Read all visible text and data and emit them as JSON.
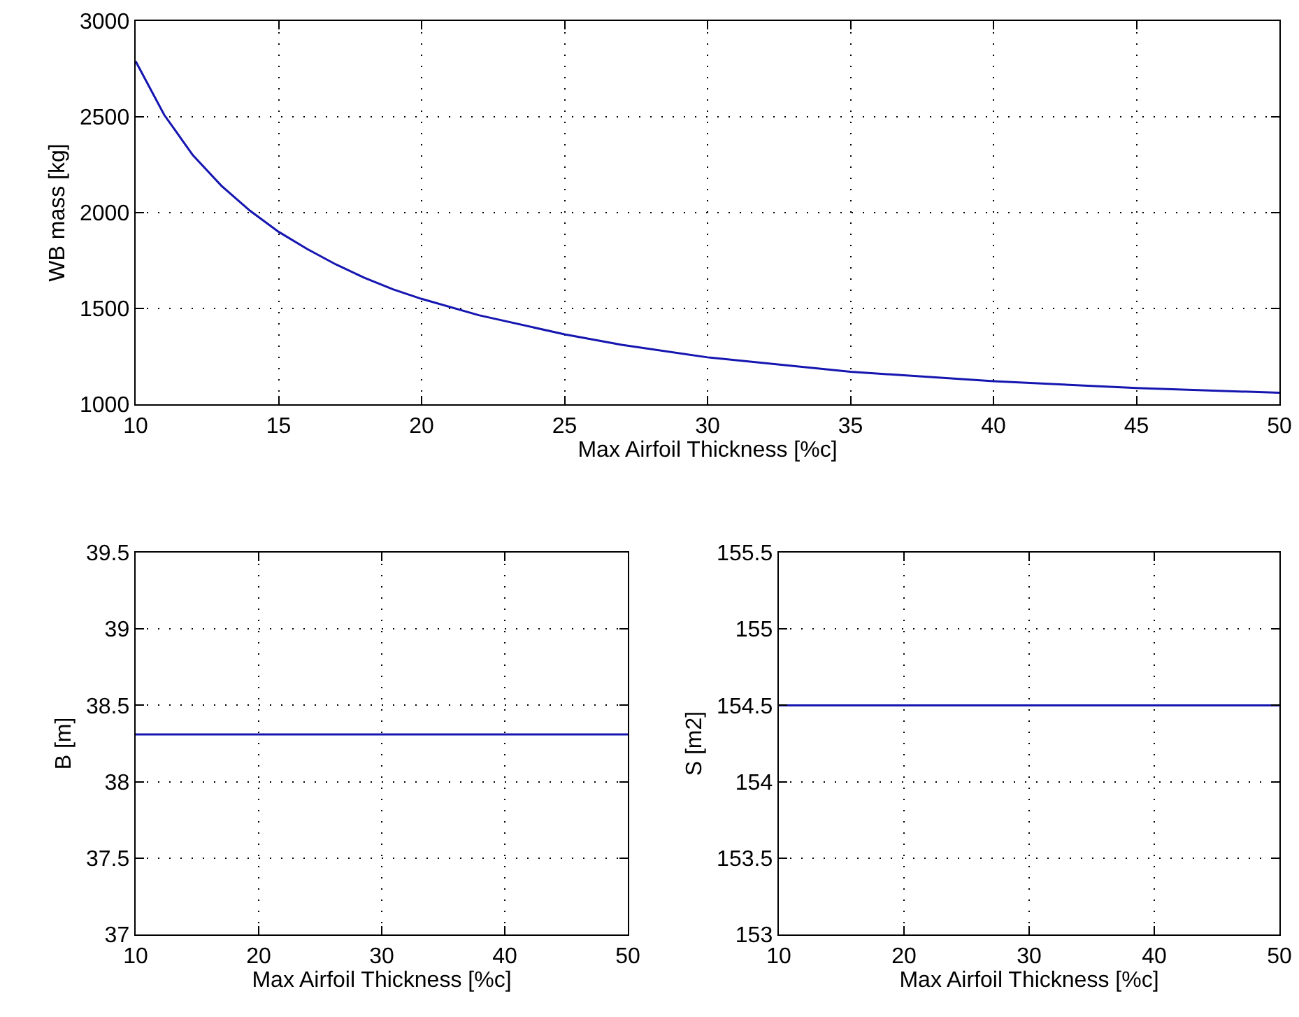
{
  "chart_data": [
    {
      "type": "line",
      "xlabel": "Max Airfoil Thickness [%c]",
      "ylabel": "WB mass [kg]",
      "x": [
        10,
        11,
        12,
        13,
        14,
        15,
        16,
        17,
        18,
        19,
        20,
        22,
        25,
        27,
        30,
        35,
        40,
        45,
        50
      ],
      "series": [
        {
          "color": "#1515b0",
          "values": [
            2790,
            2510,
            2300,
            2140,
            2010,
            1900,
            1810,
            1730,
            1660,
            1600,
            1550,
            1465,
            1365,
            1310,
            1245,
            1170,
            1120,
            1085,
            1060
          ]
        }
      ],
      "xlim": [
        10,
        50
      ],
      "xticks": [
        10,
        15,
        20,
        25,
        30,
        35,
        40,
        45,
        50
      ],
      "ylim": [
        1000,
        3000
      ],
      "yticks": [
        1000,
        1500,
        2000,
        2500,
        3000
      ],
      "grid": true,
      "line_style": "solid",
      "marker": "none"
    },
    {
      "type": "line",
      "xlabel": "Max Airfoil Thickness [%c]",
      "ylabel": "B [m]",
      "x": [
        10,
        50
      ],
      "series": [
        {
          "color": "#1515b0",
          "values": [
            38.31,
            38.31
          ]
        }
      ],
      "xlim": [
        10,
        50
      ],
      "xticks": [
        10,
        20,
        30,
        40,
        50
      ],
      "ylim": [
        37,
        39.5
      ],
      "yticks": [
        37,
        37.5,
        38,
        38.5,
        39,
        39.5
      ],
      "grid": true,
      "line_style": "solid",
      "marker": "none"
    },
    {
      "type": "line",
      "xlabel": "Max Airfoil Thickness [%c]",
      "ylabel": "S [m2]",
      "x": [
        10,
        50
      ],
      "series": [
        {
          "color": "#1515b0",
          "values": [
            154.5,
            154.5
          ]
        }
      ],
      "xlim": [
        10,
        50
      ],
      "xticks": [
        10,
        20,
        30,
        40,
        50
      ],
      "ylim": [
        153,
        155.5
      ],
      "yticks": [
        153,
        153.5,
        154,
        154.5,
        155,
        155.5
      ],
      "grid": true,
      "line_style": "solid",
      "marker": "none"
    }
  ]
}
